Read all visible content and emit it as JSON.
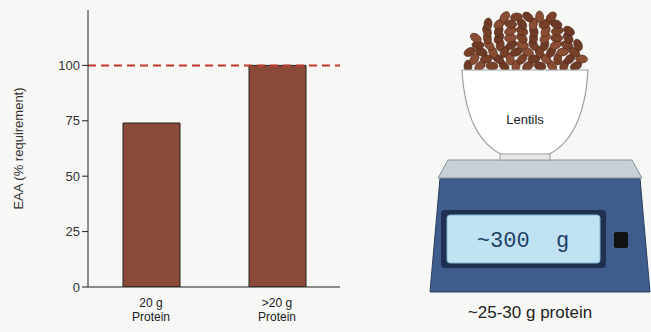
{
  "chart_data": {
    "type": "bar",
    "y_label": "EAA (% requirement)",
    "categories": [
      "20 g Protein",
      ">20 g Protein"
    ],
    "values": [
      74,
      100
    ],
    "color": "#8b4a38",
    "ylim": [
      0,
      125
    ],
    "yticks": [
      0,
      25,
      50,
      75,
      100
    ],
    "grid": false,
    "reference_line": {
      "value": 100,
      "color": "#c0392b",
      "line_style": "dashed"
    }
  },
  "illustration": {
    "bowl_label": "Lentils",
    "scale_display": "~300  g",
    "caption": "~25-30 g protein"
  }
}
